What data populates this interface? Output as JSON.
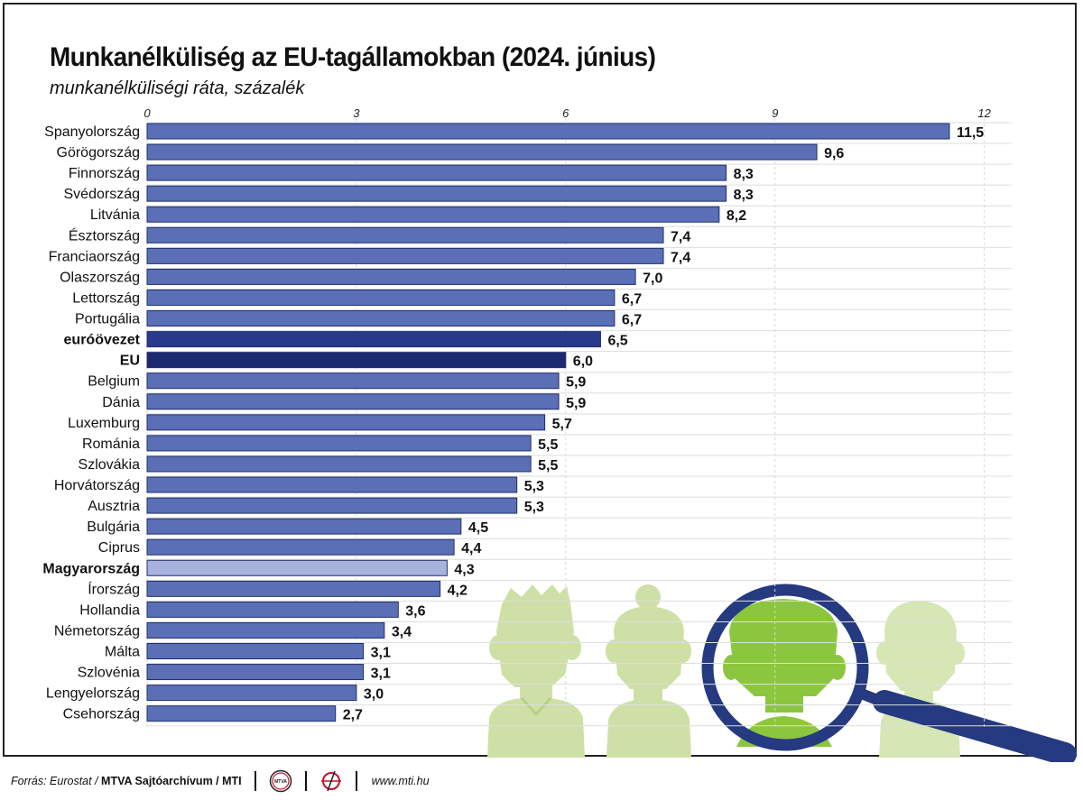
{
  "title": "Munkanélküliség az EU-tagállamokban (2024. június)",
  "subtitle": "munkanélküliségi ráta, százalék",
  "footer": {
    "source_label": "Forrás: Eurostat /",
    "archive_label": "MTVA Sajtóarchívum / MTI",
    "logo1_text": "MTVA",
    "url": "www.mti.hu"
  },
  "colors": {
    "bar": "#5a6fb5",
    "bar_stroke": "#1f2f6e",
    "highlight_euro": "#2a3a8a",
    "highlight_eu": "#1b2a70",
    "highlight_hu": "#a8b2dc",
    "figure_light": "#cfe0a6",
    "figure_green": "#8cc63f",
    "magnifier": "#253a80"
  },
  "chart_data": {
    "type": "bar",
    "orientation": "horizontal",
    "xlim": [
      0,
      12
    ],
    "xticks": [
      "0",
      "3",
      "6",
      "9",
      "12"
    ],
    "grid": true,
    "categories": [
      "Spanyolország",
      "Görögország",
      "Finnország",
      "Svédország",
      "Litvánia",
      "Észtország",
      "Franciaország",
      "Olaszország",
      "Lettország",
      "Portugália",
      "euróövezet",
      "EU",
      "Belgium",
      "Dánia",
      "Luxemburg",
      "Románia",
      "Szlovákia",
      "Horvátország",
      "Ausztria",
      "Bulgária",
      "Ciprus",
      "Magyarország",
      "Írország",
      "Hollandia",
      "Németország",
      "Málta",
      "Szlovénia",
      "Lengyelország",
      "Csehország"
    ],
    "values": [
      11.5,
      9.6,
      8.3,
      8.3,
      8.2,
      7.4,
      7.4,
      7.0,
      6.7,
      6.7,
      6.5,
      6.0,
      5.9,
      5.9,
      5.7,
      5.5,
      5.5,
      5.3,
      5.3,
      4.5,
      4.4,
      4.3,
      4.2,
      3.6,
      3.4,
      3.1,
      3.1,
      3.0,
      2.7
    ],
    "value_labels": [
      "11,5",
      "9,6",
      "8,3",
      "8,3",
      "8,2",
      "7,4",
      "7,4",
      "7,0",
      "6,7",
      "6,7",
      "6,5",
      "6,0",
      "5,9",
      "5,9",
      "5,7",
      "5,5",
      "5,5",
      "5,3",
      "5,3",
      "4,5",
      "4,4",
      "4,3",
      "4,2",
      "3,6",
      "3,4",
      "3,1",
      "3,1",
      "3,0",
      "2,7"
    ],
    "bold_categories": [
      "euróövezet",
      "EU",
      "Magyarország"
    ]
  }
}
